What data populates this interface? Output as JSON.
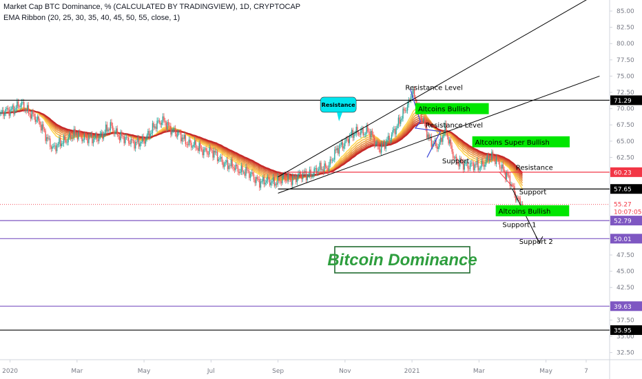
{
  "header": {
    "line1": "Market Cap BTC Dominance, % (CALCULATED BY TRADINGVIEW), 1D, CRYPTOCAP",
    "line2": "EMA Ribbon (20, 25, 30, 35, 40, 45, 50, 55, close, 1)"
  },
  "title_box": {
    "text": "Bitcoin Dominance",
    "color": "#2e9e3e"
  },
  "colors": {
    "axis_text": "#787b86",
    "candle_up": "#26a69a",
    "candle_down": "#ef5350",
    "ribbon_fast": "#ffd54f",
    "ribbon_slow": "#c62828",
    "purple_line": "#7e57c2",
    "red_line": "#f23645",
    "green_label": "#00e600",
    "cyan_label": "#00e5ee"
  },
  "chart_data": {
    "type": "line",
    "title": "Market Cap BTC Dominance, % (CALCULATED BY TRADINGVIEW), 1D, CRYPTOCAP",
    "xlabel": "",
    "ylabel": "",
    "ylim": [
      31.4,
      86.7
    ],
    "x_ticks": [
      {
        "label": "2020",
        "x": 0.0
      },
      {
        "label": "Mar",
        "x": 2.0
      },
      {
        "label": "May",
        "x": 4.0
      },
      {
        "label": "Jul",
        "x": 6.0
      },
      {
        "label": "Sep",
        "x": 8.0
      },
      {
        "label": "Nov",
        "x": 10.0
      },
      {
        "label": "2021",
        "x": 12.0
      },
      {
        "label": "Mar",
        "x": 14.0
      },
      {
        "label": "May",
        "x": 16.0
      },
      {
        "label": "7",
        "x": 17.2
      }
    ],
    "xlim": [
      -0.3,
      17.9
    ],
    "y_ticks": [
      "85.00",
      "82.50",
      "80.00",
      "77.50",
      "75.00",
      "72.50",
      "70.00",
      "67.50",
      "65.00",
      "62.50",
      "60.00",
      "57.50",
      "55.00",
      "52.50",
      "50.00",
      "47.50",
      "45.00",
      "42.50",
      "40.00",
      "37.50",
      "35.00",
      "32.50"
    ],
    "y_tick_values": [
      85,
      82.5,
      80,
      77.5,
      75,
      72.5,
      70,
      67.5,
      65,
      62.5,
      60,
      57.5,
      55,
      52.5,
      50,
      47.5,
      45,
      42.5,
      40,
      37.5,
      35,
      32.5
    ],
    "series": [
      {
        "x": [
          -0.3,
          0.3,
          0.7,
          1.0,
          1.3,
          1.6,
          2.0,
          2.5,
          3.0,
          3.5,
          4.0,
          4.3,
          4.6,
          5.0,
          5.3,
          5.6,
          6.0,
          6.5,
          7.0,
          7.5,
          8.0,
          8.5,
          9.0,
          9.5,
          9.8,
          10.1,
          10.4,
          10.7,
          11.0,
          11.3,
          11.6,
          11.9,
          12.0,
          12.2,
          12.5,
          12.8,
          13.0,
          13.3,
          13.6,
          14.0,
          14.3,
          14.6,
          14.9,
          15.1,
          15.3
        ],
        "values": [
          69.0,
          70.6,
          69.0,
          66.6,
          63.7,
          65.2,
          66.0,
          65.2,
          67.1,
          65.0,
          64.8,
          67.5,
          68.0,
          66.0,
          64.9,
          63.9,
          63.4,
          61.3,
          60.4,
          58.7,
          58.9,
          59.4,
          60.1,
          61.2,
          63.9,
          65.5,
          66.5,
          66.5,
          64.0,
          65.0,
          68.0,
          70.6,
          73.0,
          69.8,
          65.5,
          64.0,
          67.0,
          61.7,
          61.5,
          61.0,
          62.5,
          61.8,
          59.0,
          56.5,
          55.27
        ]
      }
    ],
    "ema_ribbon": {
      "periods": [
        20,
        25,
        30,
        35,
        40,
        45,
        50,
        55
      ]
    },
    "price_levels": [
      {
        "label": "71.29",
        "value": 71.29,
        "color": "#000000"
      },
      {
        "label": "60.23",
        "value": 60.23,
        "color": "#f23645"
      },
      {
        "label": "57.65",
        "value": 57.65,
        "color": "#000000"
      },
      {
        "label": "55.27",
        "value": 55.27,
        "color": "#f23645",
        "countdown": "10:07:05"
      },
      {
        "label": "52.79",
        "value": 52.79,
        "color": "#7e57c2"
      },
      {
        "label": "50.01",
        "value": 50.01,
        "color": "#7e57c2"
      },
      {
        "label": "39.63",
        "value": 39.63,
        "color": "#7e57c2"
      },
      {
        "label": "35.95",
        "value": 35.95,
        "color": "#000000"
      }
    ],
    "trendlines": [
      {
        "from": [
          8.0,
          59.5
        ],
        "to": [
          17.3,
          87.0
        ],
        "color": "#000000"
      },
      {
        "from": [
          8.0,
          57.0
        ],
        "to": [
          17.6,
          75.0
        ],
        "color": "#000000"
      },
      {
        "from": [
          14.6,
          60.3
        ],
        "to": [
          15.0,
          58.0
        ],
        "color": "#f23645"
      },
      {
        "from": [
          15.0,
          57.6
        ],
        "to": [
          15.8,
          49.4
        ],
        "color": "#000000"
      }
    ],
    "annotations": [
      {
        "text": "Resistance Level",
        "x": 11.8,
        "y": 72.9
      },
      {
        "text": "Resistance Level",
        "x": 12.4,
        "y": 67.1
      },
      {
        "text": "Support",
        "x": 12.9,
        "y": 61.6
      },
      {
        "text": "Resistance",
        "x": 15.1,
        "y": 60.6
      },
      {
        "text": "Support",
        "x": 15.2,
        "y": 56.8
      },
      {
        "text": "Support 1",
        "x": 14.7,
        "y": 51.8
      },
      {
        "text": "Support 2",
        "x": 15.2,
        "y": 49.2
      }
    ],
    "labels": [
      {
        "text": "Resistance",
        "style": "callout",
        "x": 9.8,
        "y": 70.6
      },
      {
        "text": "Altcoins  Bullish",
        "style": "green",
        "x": 12.1,
        "y": 70.0
      },
      {
        "text": "Altcoins  Super Bullish",
        "style": "green",
        "x": 13.8,
        "y": 64.9
      },
      {
        "text": "Altcoins  Bullish",
        "style": "green",
        "x": 14.5,
        "y": 54.3
      }
    ]
  }
}
